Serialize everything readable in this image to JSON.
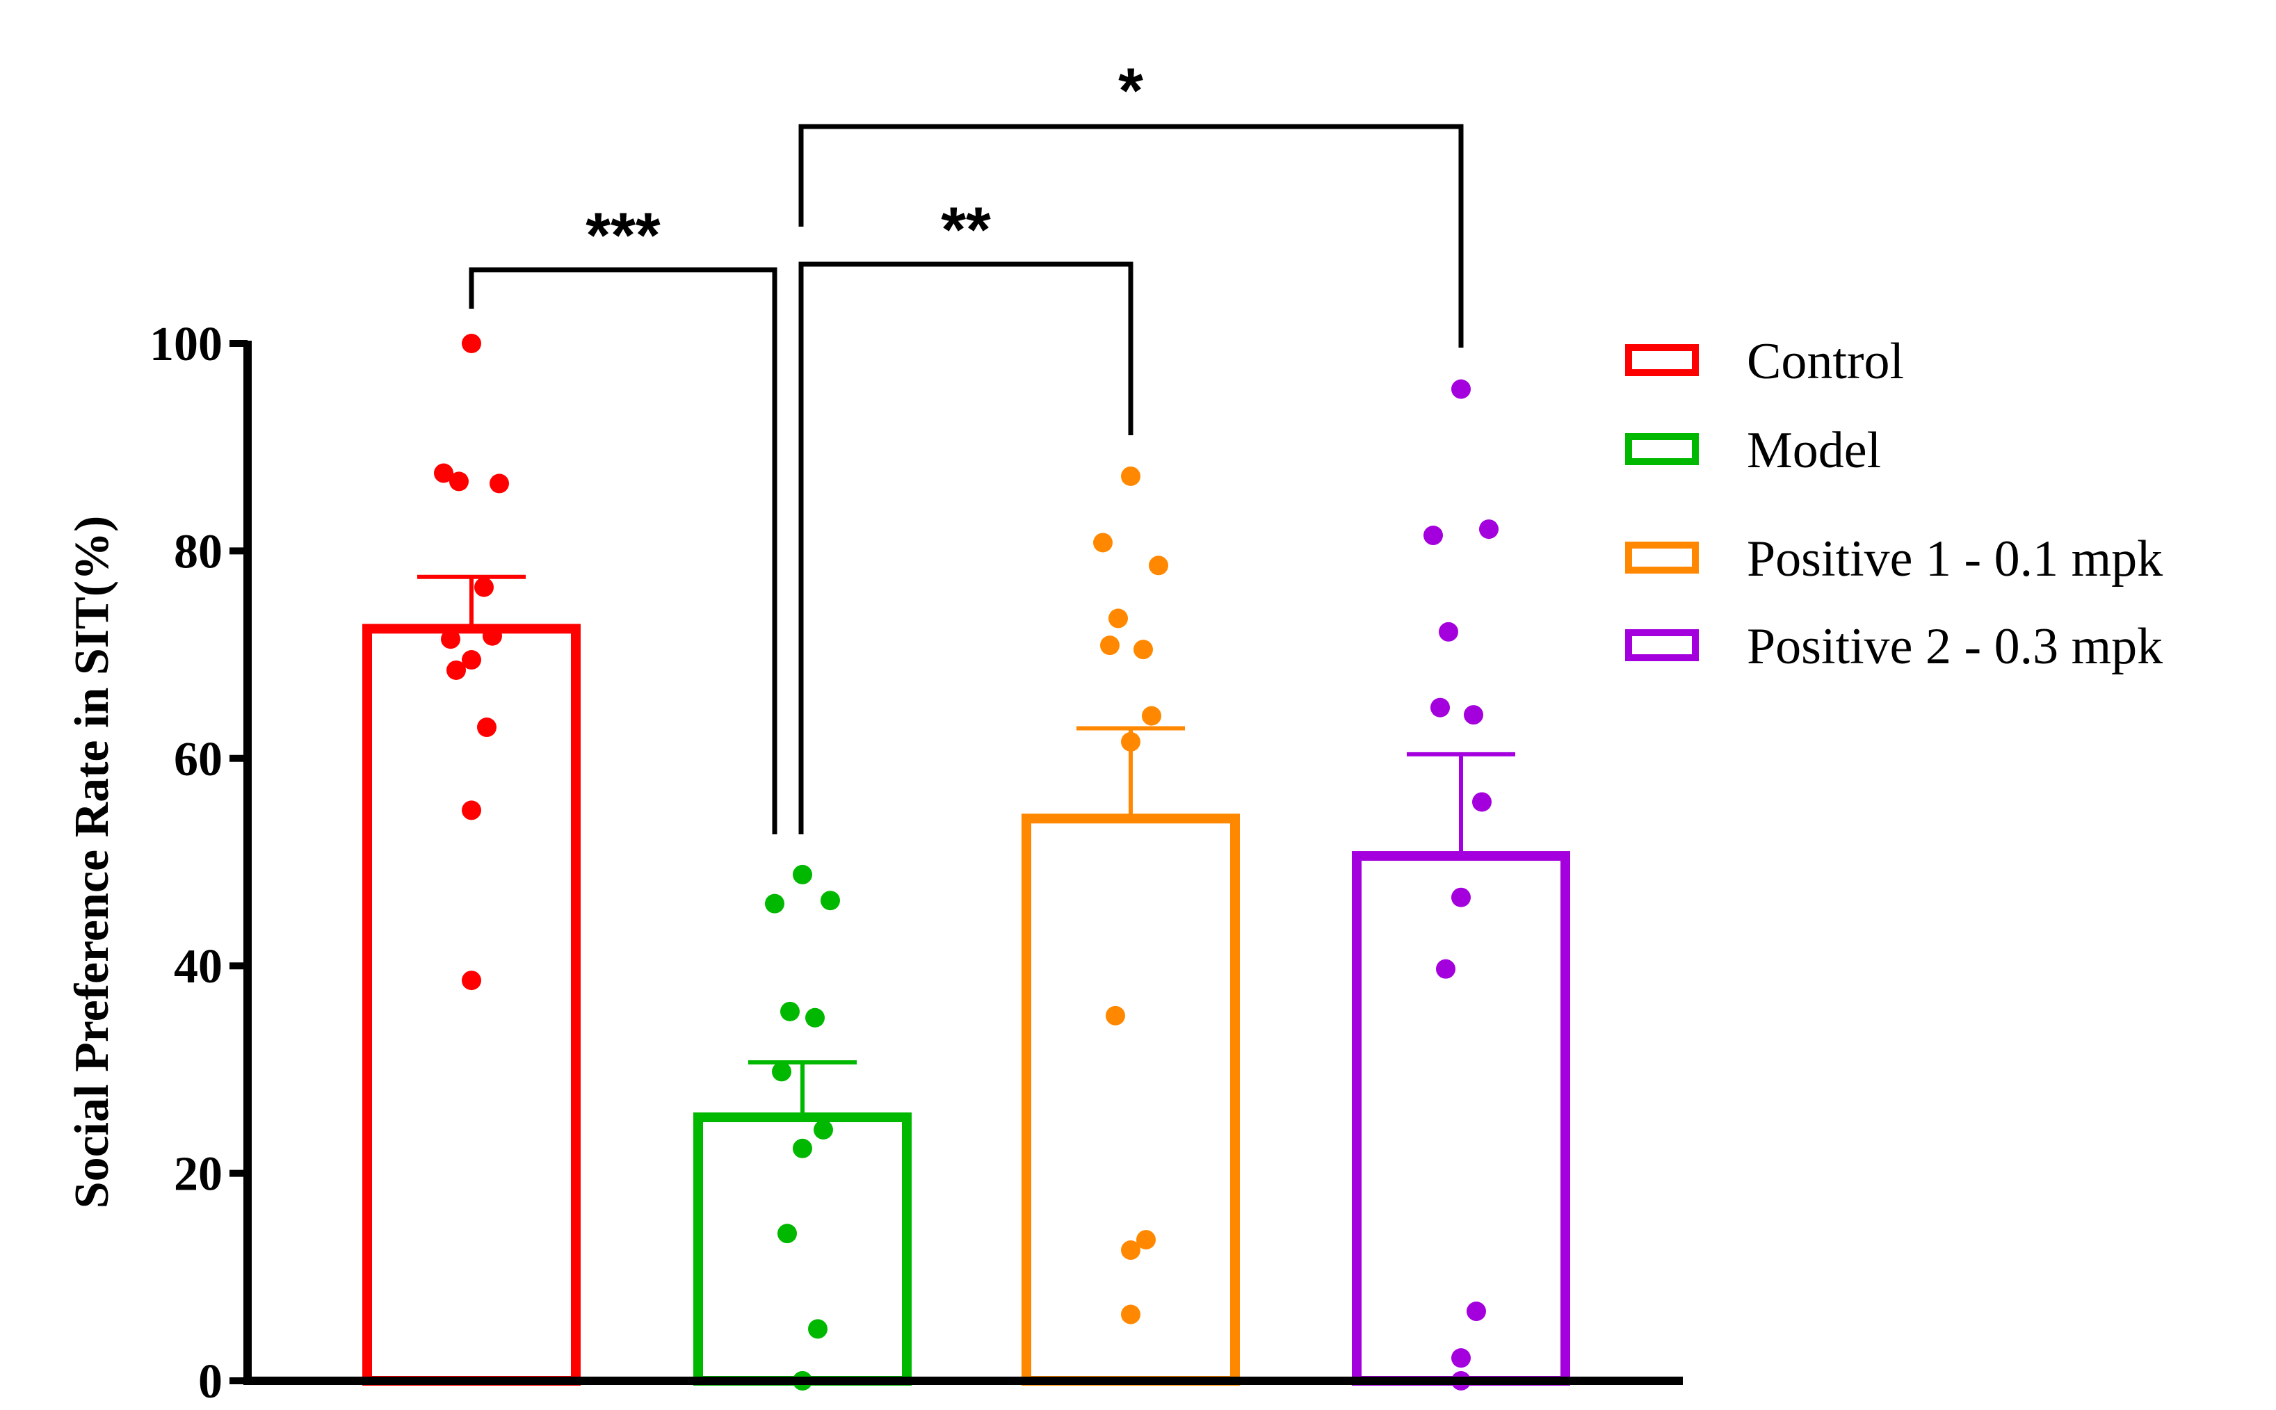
{
  "chart_data": {
    "type": "bar",
    "title": "",
    "xlabel": "",
    "ylabel": "Social Preference Rate in SIT(%)",
    "ylim": [
      0,
      100
    ],
    "yticks": [
      0,
      20,
      40,
      60,
      80,
      100
    ],
    "grid": false,
    "legend_position": "right",
    "categories": [
      "Control",
      "Model",
      "Positive 1 - 0.1 mpk",
      "Positive 2 - 0.3 mpk"
    ],
    "series": [
      {
        "name": "Control",
        "color": "#ff0000",
        "mean": 72.5,
        "sem": 5.0,
        "points": [
          100,
          87.5,
          86.5,
          86.7,
          76.5,
          71.5,
          71.8,
          69.5,
          68.5,
          63,
          55,
          38.6
        ]
      },
      {
        "name": "Model",
        "color": "#00b800",
        "mean": 25.4,
        "sem": 5.3,
        "points": [
          48.8,
          46,
          46.3,
          35.6,
          35,
          29.8,
          24.2,
          22.4,
          14.2,
          5,
          0,
          0
        ]
      },
      {
        "name": "Positive 1 - 0.1 mpk",
        "color": "#ff8800",
        "mean": 54.2,
        "sem": 8.7,
        "points": [
          87.2,
          80.8,
          78.6,
          73.5,
          70.5,
          70.9,
          64.1,
          61.6,
          35.2,
          13.6,
          12.6,
          6.4
        ]
      },
      {
        "name": "Positive 2 - 0.3 mpk",
        "color": "#a400dd",
        "mean": 50.6,
        "sem": 9.8,
        "points": [
          95.6,
          81.5,
          82.1,
          72.2,
          64.2,
          64.9,
          55.8,
          46.6,
          39.7,
          6.7,
          2.2,
          0
        ]
      }
    ],
    "significance": [
      {
        "from": "Control",
        "to": "Model",
        "label": "***"
      },
      {
        "from": "Model",
        "to": "Positive 1 - 0.1 mpk",
        "label": "**"
      },
      {
        "from": "Model",
        "to": "Positive 2 - 0.3 mpk",
        "label": "*"
      }
    ]
  }
}
